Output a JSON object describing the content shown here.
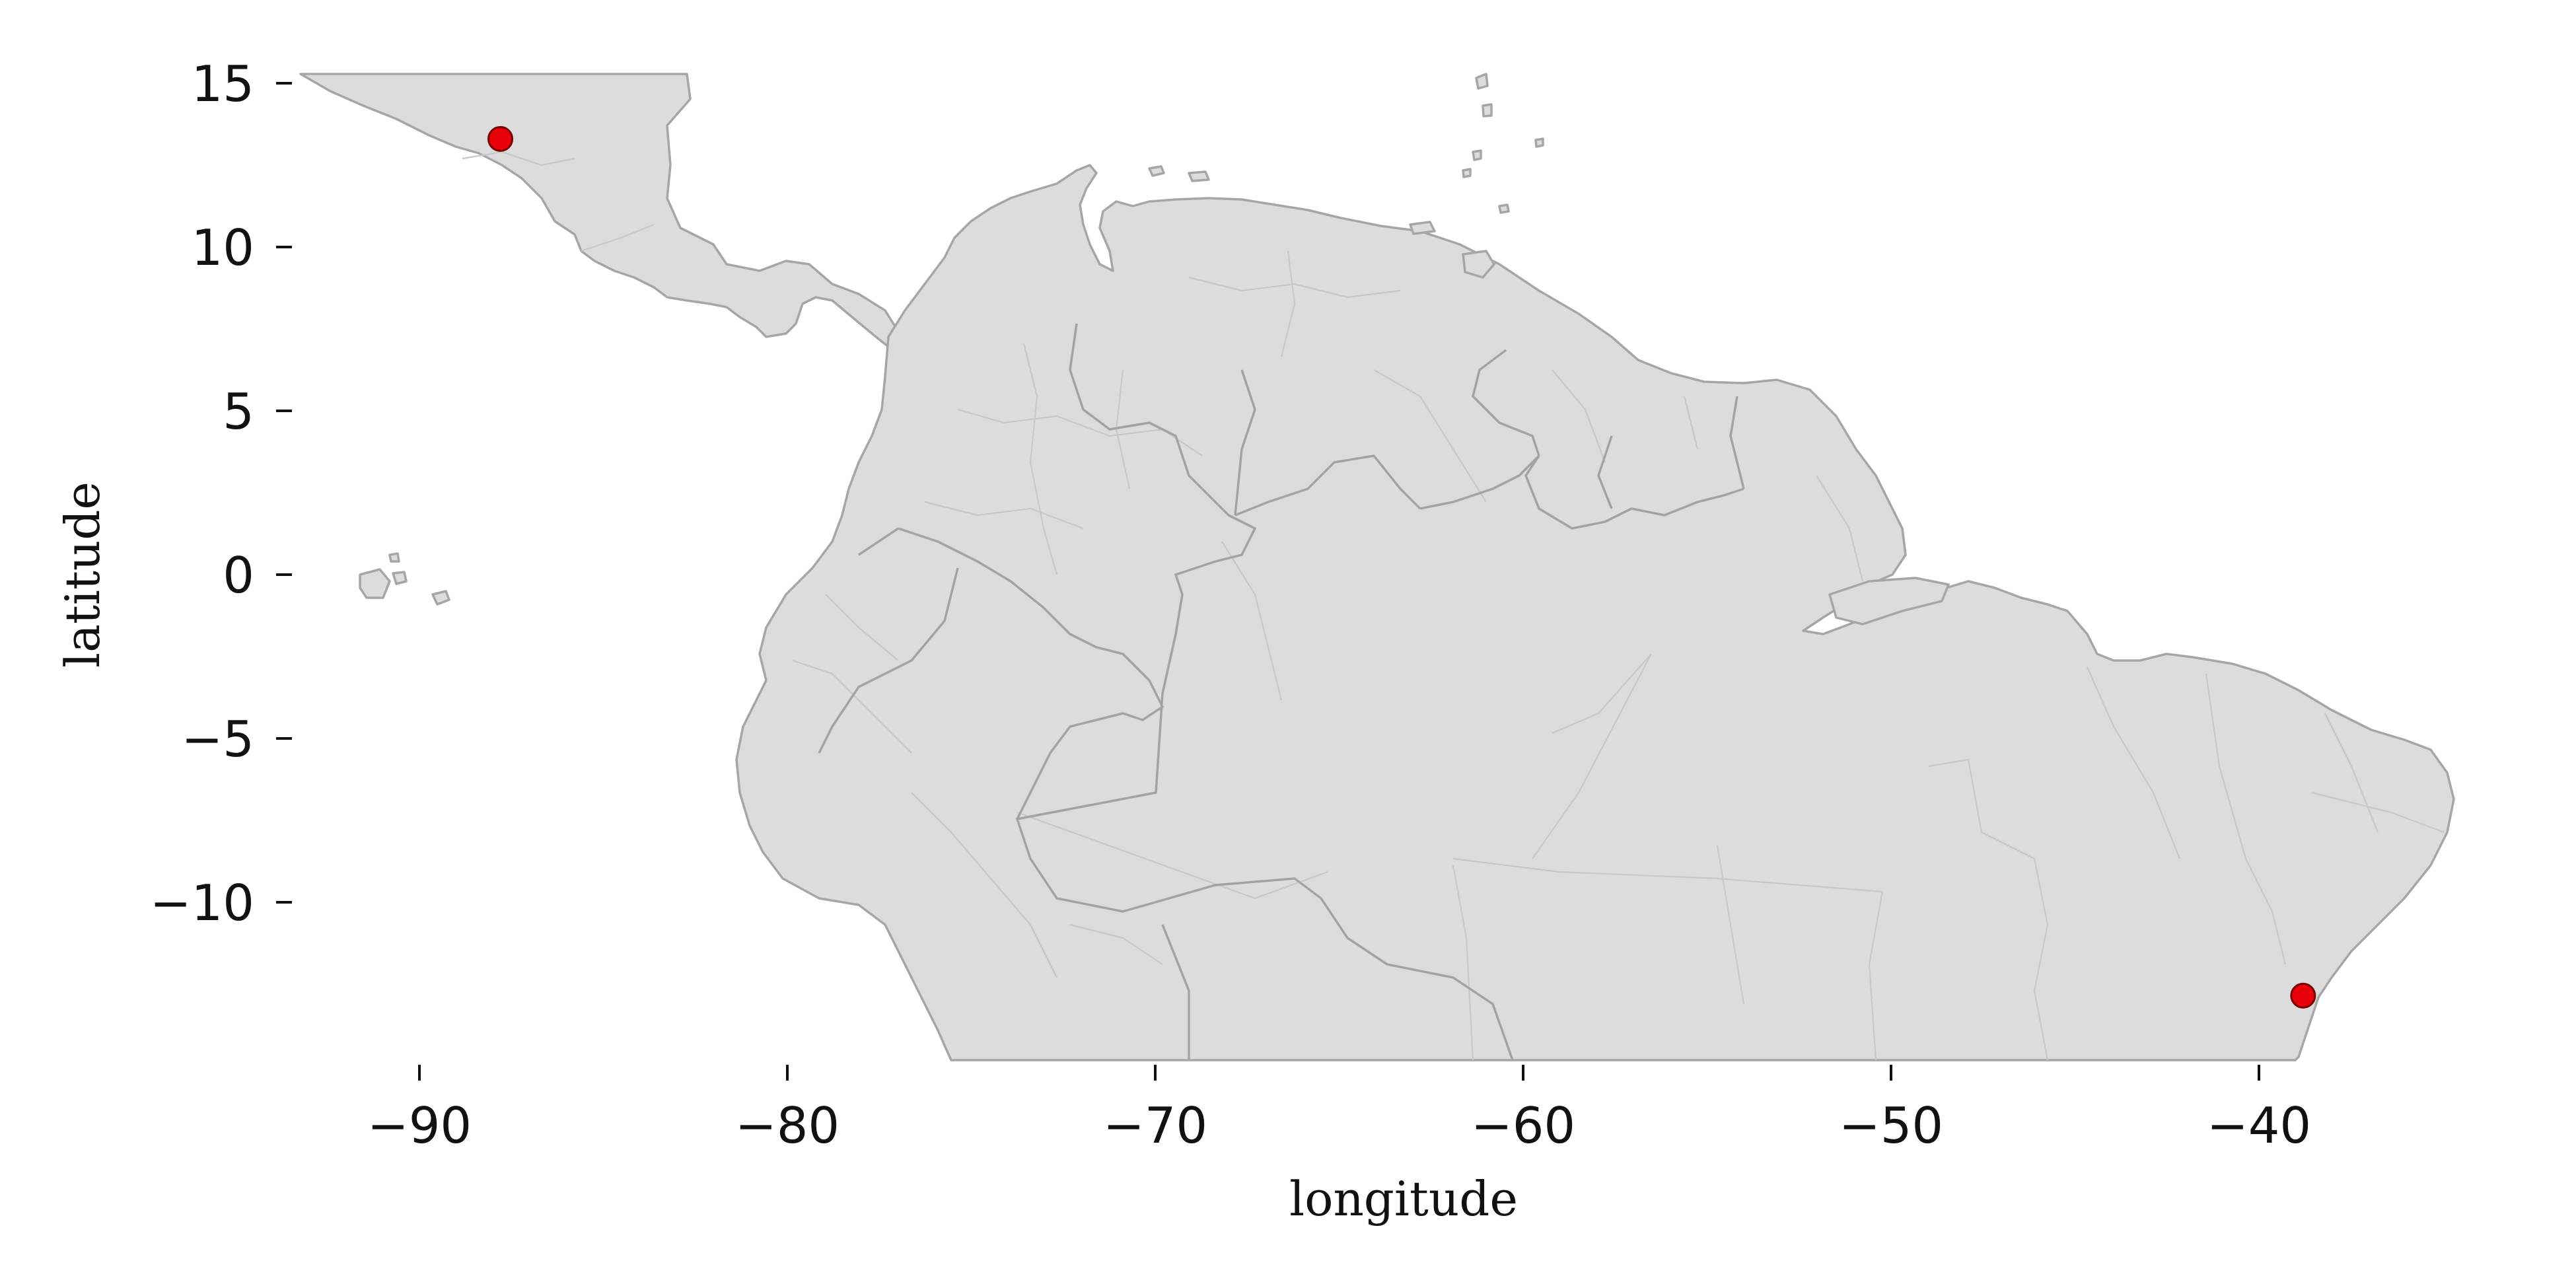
{
  "map": {
    "xlabel": "longitude",
    "ylabel": "latitude",
    "xlim": [
      -94.5,
      -34.8
    ],
    "ylim": [
      -14.8,
      15.2
    ],
    "x_ticks": [
      {
        "value": -90,
        "label": "−90"
      },
      {
        "value": -80,
        "label": "−80"
      },
      {
        "value": -70,
        "label": "−70"
      },
      {
        "value": -60,
        "label": "−60"
      },
      {
        "value": -50,
        "label": "−50"
      },
      {
        "value": -40,
        "label": "−40"
      }
    ],
    "y_ticks": [
      {
        "value": 15,
        "label": "15"
      },
      {
        "value": 10,
        "label": "10"
      },
      {
        "value": 5,
        "label": "5"
      },
      {
        "value": 0,
        "label": "0"
      },
      {
        "value": -5,
        "label": "−5"
      },
      {
        "value": -10,
        "label": "−10"
      }
    ],
    "land_color": "#dcdcdc",
    "border_color": "#a6a6a6",
    "grid": false
  },
  "points": [
    {
      "lon": -87.8,
      "lat": 13.3,
      "color": "#e8000b"
    },
    {
      "lon": -38.8,
      "lat": -12.85,
      "color": "#e8000b"
    }
  ]
}
